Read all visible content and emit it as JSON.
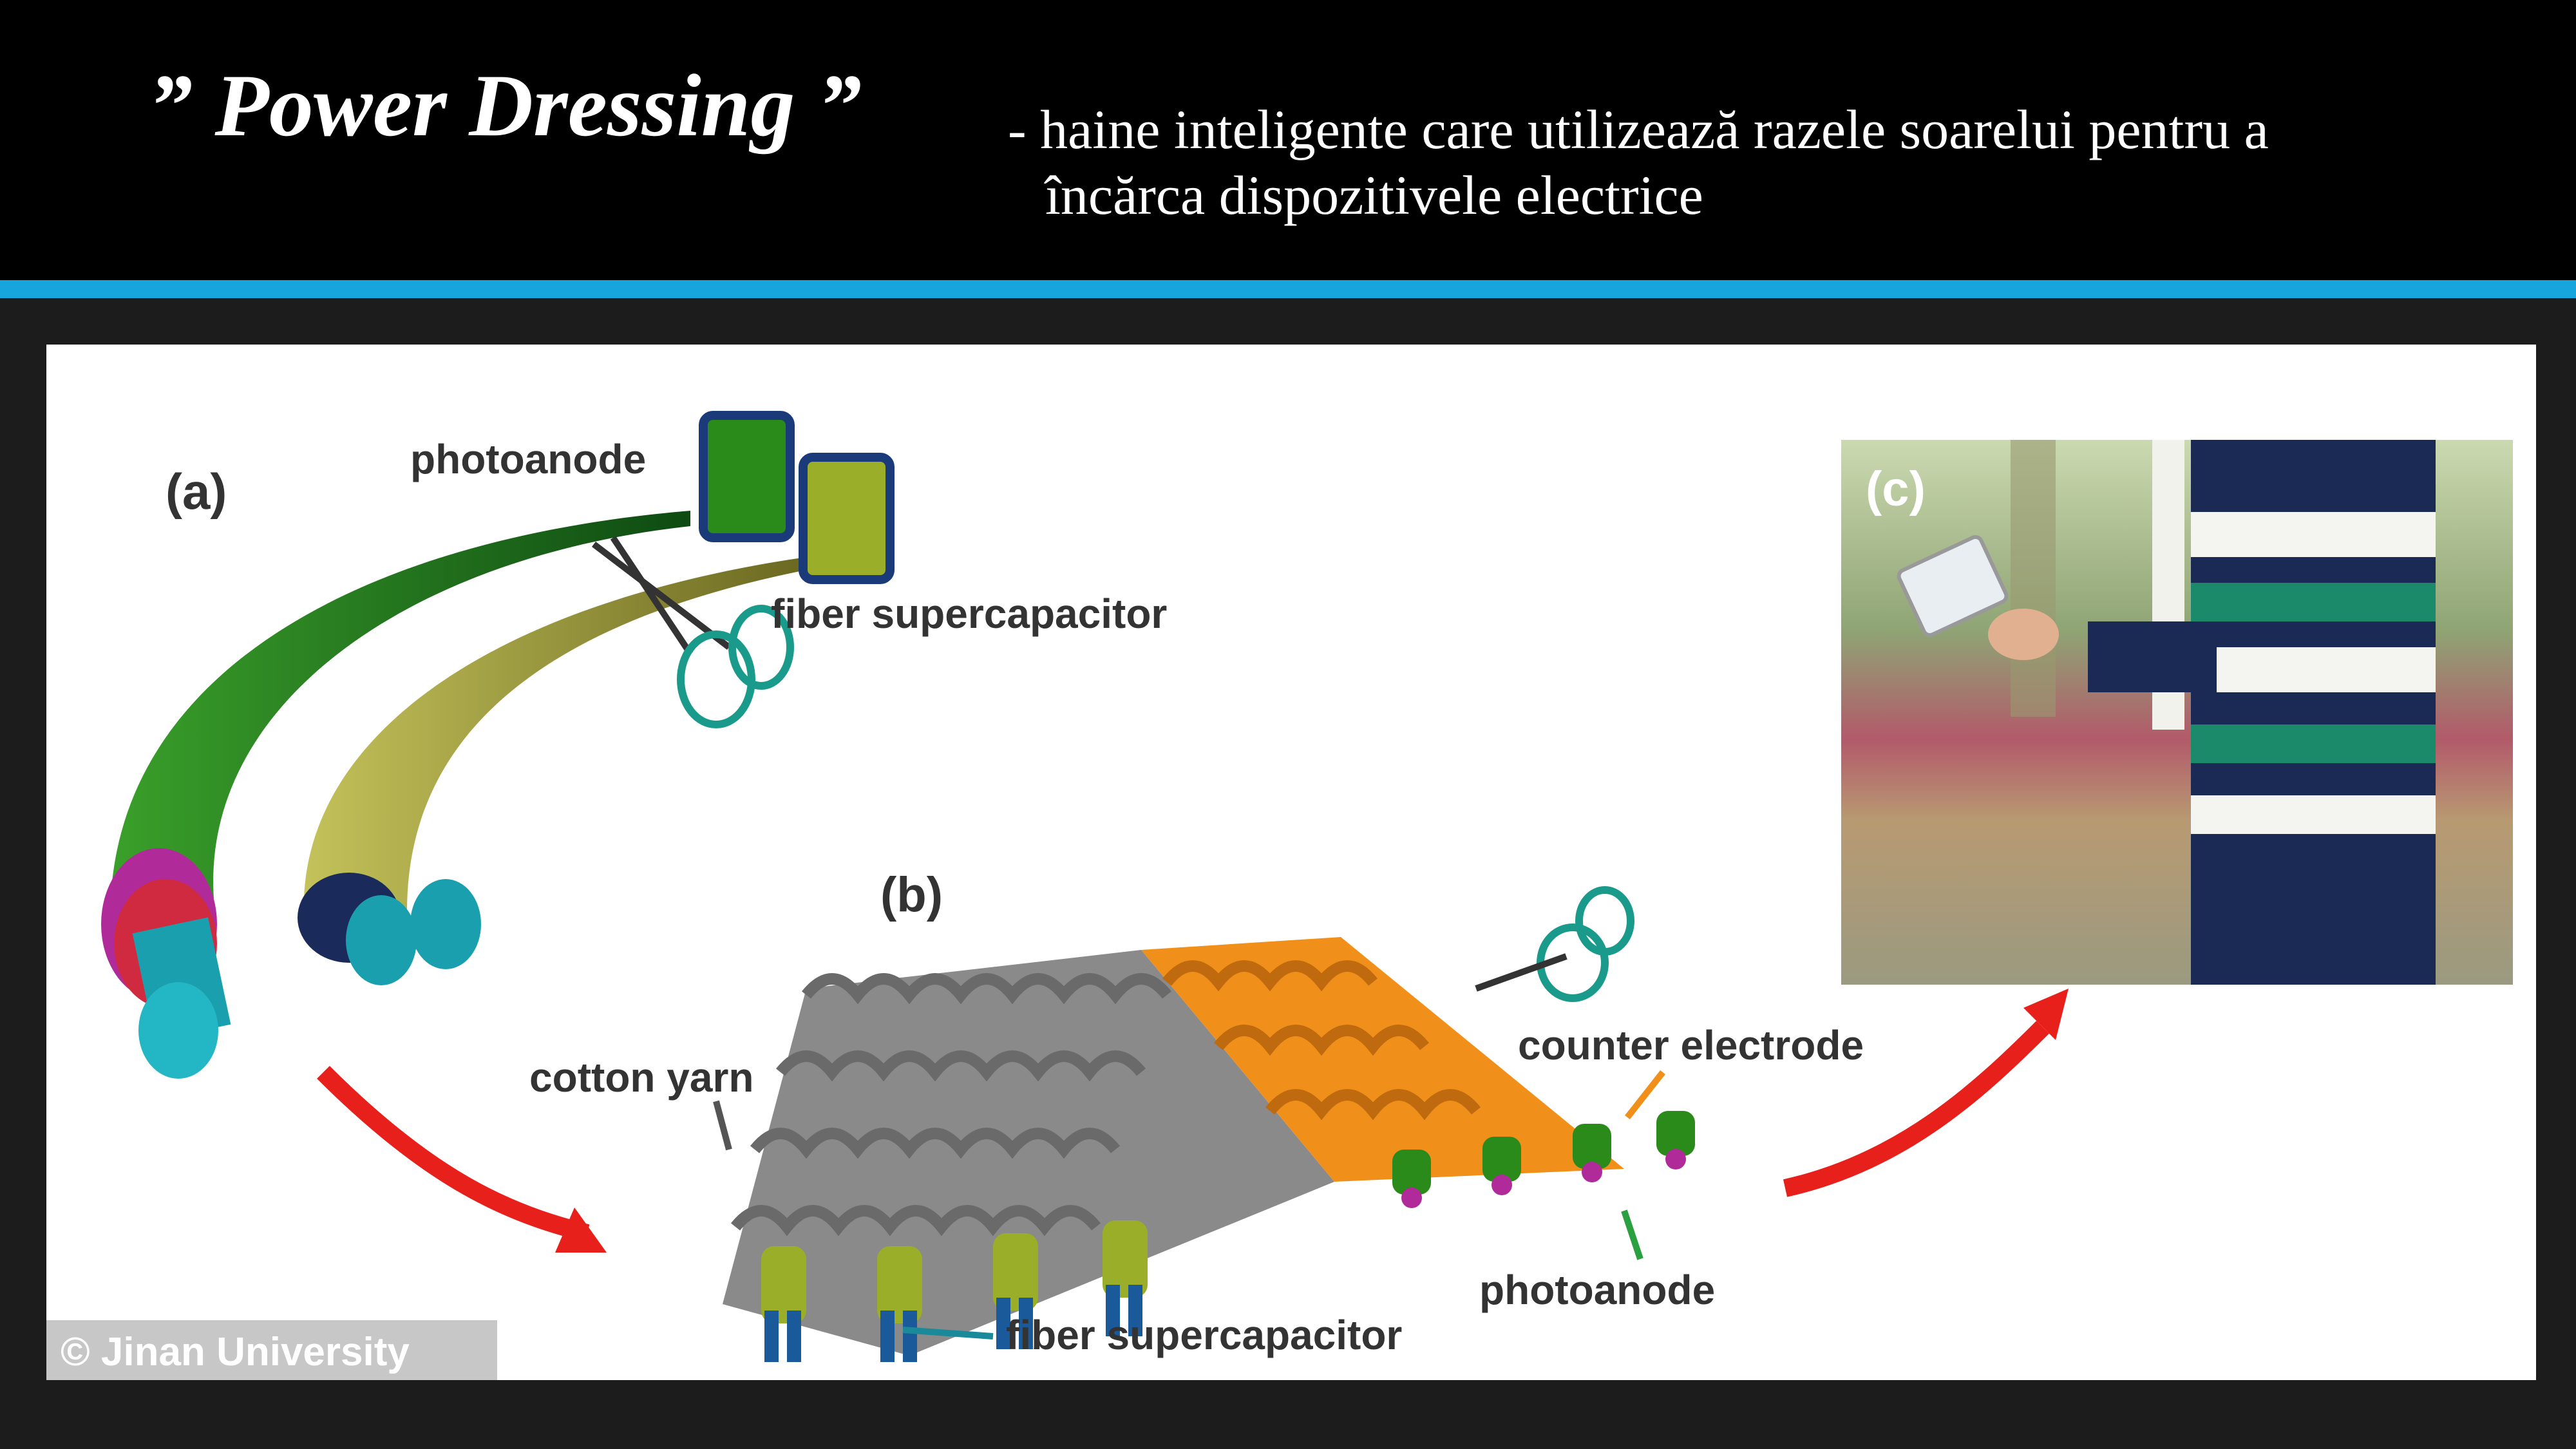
{
  "slide": {
    "title": "” Power Dressing ”",
    "subtitle_line1": "- haine inteligente care utilizează razele soarelui pentru a",
    "subtitle_line2": "încărca dispozitivele electrice"
  },
  "figure": {
    "label_a": "(a)",
    "label_b": "(b)",
    "label_c": "(c)",
    "photoanode_top": "photoanode",
    "fiber_supercapacitor_top": "fiber supercapacitor",
    "cotton_yarn": "cotton yarn",
    "counter_electrode": "counter electrode",
    "photoanode_bottom": "photoanode",
    "fiber_supercapacitor_bottom": "fiber supercapacitor",
    "credit": "© Jinan University"
  },
  "colors": {
    "accent_bar": "#16a5dd",
    "green_fiber": "#1f7a1f",
    "olive_fiber": "#9a9a2a",
    "cyan_core": "#1a9fae",
    "orange_electrode": "#f0901a",
    "gray_yarn": "#8a8a8a",
    "arrow_red": "#e8201c"
  }
}
